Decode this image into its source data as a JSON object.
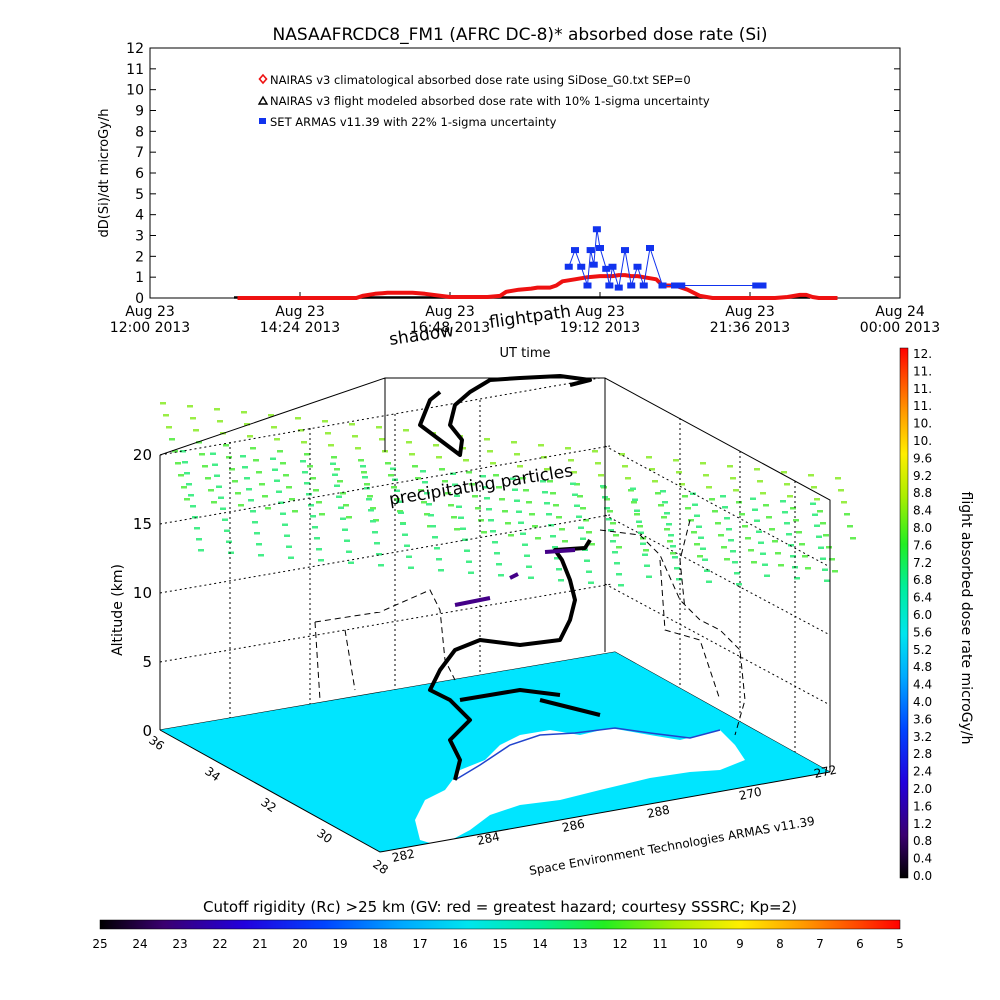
{
  "colors": {
    "red": "#ee1111",
    "blue": "#1133ee",
    "black": "#000000",
    "surface": "#00e5ff",
    "land": "#ffffff",
    "dots": "#66ee55",
    "dots_high": "#99ee44"
  },
  "chart_data": [
    {
      "type": "line",
      "title": "NASAAFRCDC8_FM1 (AFRC DC-8)* absorbed dose rate (Si)",
      "ylabel": "dD(Si)/dt microGy/h",
      "xlabel": "UT time",
      "ylim": [
        0,
        12
      ],
      "yticks": [
        0,
        1,
        2,
        3,
        4,
        5,
        6,
        7,
        8,
        9,
        10,
        11,
        12
      ],
      "xlim_hours": [
        12,
        24
      ],
      "xticks": [
        {
          "h": 12.0,
          "line1": "Aug 23",
          "line2": "12:00 2013"
        },
        {
          "h": 14.4,
          "line1": "Aug 23",
          "line2": "14:24 2013"
        },
        {
          "h": 16.8,
          "line1": "Aug 23",
          "line2": "16:48 2013"
        },
        {
          "h": 19.2,
          "line1": "Aug 23",
          "line2": "19:12 2013"
        },
        {
          "h": 21.6,
          "line1": "Aug 23",
          "line2": "21:36 2013"
        },
        {
          "h": 24.0,
          "line1": "Aug 24",
          "line2": "00:00 2013"
        }
      ],
      "legend": [
        {
          "label": "NAIRAS v3 climatological absorbed dose rate using SiDose_G0.txt SEP=0",
          "marker": "diamond",
          "color": "#ee1111"
        },
        {
          "label": "NAIRAS v3 flight modeled absorbed dose rate with 10% 1-sigma uncertainty",
          "marker": "triangle",
          "color": "#000000"
        },
        {
          "label": "SET ARMAS v11.39 with 22% 1-sigma uncertainty",
          "marker": "square",
          "color": "#1133ee"
        }
      ],
      "series": [
        {
          "name": "NAIRAS v3 climatological absorbed dose rate using SiDose_G0.txt SEP=0",
          "x": [
            13.4,
            14.0,
            14.7,
            15.2,
            15.3,
            15.4,
            15.6,
            15.8,
            16.0,
            16.1,
            16.2,
            16.4,
            16.8,
            17.2,
            17.4,
            17.6,
            17.7,
            17.9,
            18.1,
            18.2,
            18.4,
            18.5,
            18.6,
            18.8,
            19.0,
            19.2,
            19.4,
            19.5,
            19.6,
            19.7,
            19.8,
            19.9,
            20.1,
            20.2,
            20.4,
            20.6,
            20.8,
            21.0,
            21.5,
            22.0,
            22.2,
            22.4,
            22.5,
            22.6,
            22.7,
            23.0
          ],
          "y": [
            0,
            0,
            0,
            0,
            0,
            0.1,
            0.2,
            0.25,
            0.25,
            0.25,
            0.25,
            0.2,
            0.05,
            0.05,
            0.05,
            0.1,
            0.3,
            0.4,
            0.45,
            0.5,
            0.5,
            0.6,
            0.8,
            0.9,
            1.0,
            1.05,
            1.05,
            1.1,
            1.1,
            1.05,
            1.05,
            1.0,
            0.9,
            0.6,
            0.6,
            0.4,
            0.1,
            0,
            0,
            0,
            0.05,
            0.15,
            0.15,
            0.05,
            0,
            0
          ]
        },
        {
          "name": "SET ARMAS v11.39 with 22% 1-sigma uncertainty",
          "x": [
            18.7,
            18.8,
            18.9,
            19.0,
            19.05,
            19.1,
            19.15,
            19.2,
            19.3,
            19.35,
            19.4,
            19.5,
            19.6,
            19.7,
            19.8,
            19.9,
            20.0,
            20.2,
            20.4,
            20.5,
            21.7,
            21.8
          ],
          "y": [
            1.5,
            2.3,
            1.5,
            0.6,
            2.3,
            1.6,
            3.3,
            2.4,
            1.4,
            0.6,
            1.5,
            0.5,
            2.3,
            0.6,
            1.5,
            0.6,
            2.4,
            0.6,
            0.6,
            0.6,
            0.6,
            0.6
          ]
        }
      ]
    },
    {
      "type": "scatter",
      "title_top": "shadow",
      "title_top2": "flightpath",
      "annotation": "precipitating particles",
      "zlabel": "Altitude (km)",
      "zticks": [
        0,
        5,
        10,
        15,
        20
      ],
      "lat_ticks": [
        36,
        34,
        32,
        30,
        28
      ],
      "lon_ticks": [
        282,
        284,
        286,
        288,
        270,
        272
      ],
      "credit": "Space Environment Technologies ARMAS v11.39"
    },
    {
      "type": "heatmap",
      "colorbar": "vertical",
      "label": "flight absorbed dose rate microGy/h",
      "ticks": [
        "12.",
        "11.",
        "11.",
        "11.",
        "10.",
        "10.",
        "9.6",
        "9.2",
        "8.8",
        "8.4",
        "8.0",
        "7.6",
        "7.2",
        "6.8",
        "6.4",
        "6.0",
        "5.6",
        "5.2",
        "4.8",
        "4.4",
        "4.0",
        "3.6",
        "3.2",
        "2.8",
        "2.4",
        "2.0",
        "1.6",
        "1.2",
        "0.8",
        "0.4",
        "0.0"
      ]
    },
    {
      "type": "heatmap",
      "colorbar": "horizontal",
      "label": "Cutoff rigidity (Rc) >25 km (GV: red = greatest hazard; courtesy SSSRC; Kp=2)",
      "ticks": [
        "25",
        "24",
        "23",
        "22",
        "21",
        "20",
        "19",
        "18",
        "17",
        "16",
        "15",
        "14",
        "13",
        "12",
        "11",
        "10",
        "9",
        "8",
        "7",
        "6",
        "5"
      ]
    }
  ]
}
